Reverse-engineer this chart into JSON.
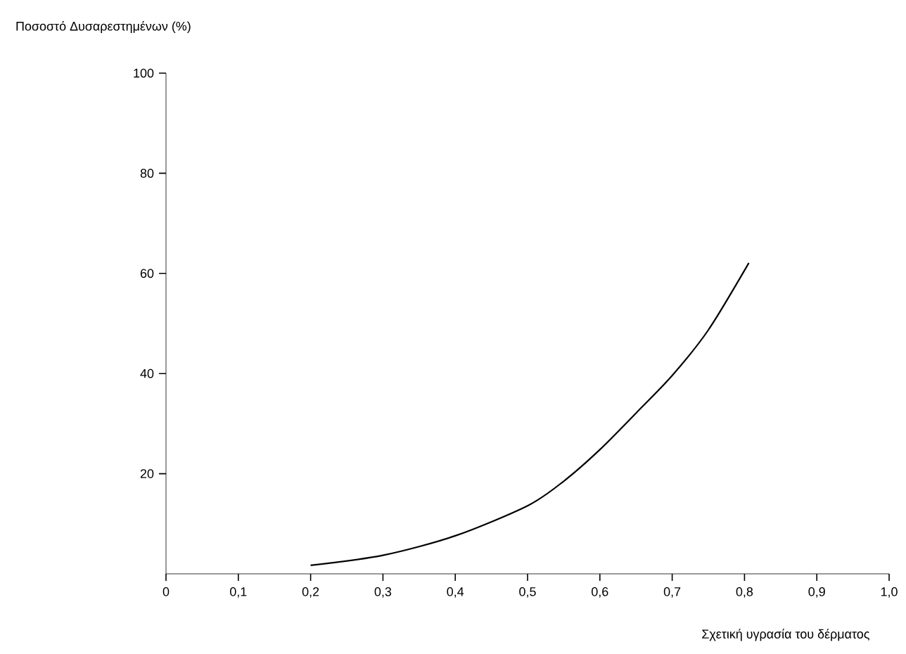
{
  "chart_data": {
    "type": "line",
    "xlabel": "Σχετική υγρασία του δέρματος",
    "ylabel": "Ποσοστό Δυσαρεστημένων (%)",
    "xlim": [
      0,
      1.0
    ],
    "ylim": [
      0,
      100
    ],
    "xticks": [
      {
        "value": 0,
        "label": "0"
      },
      {
        "value": 0.1,
        "label": "0,1"
      },
      {
        "value": 0.2,
        "label": "0,2"
      },
      {
        "value": 0.3,
        "label": "0,3"
      },
      {
        "value": 0.4,
        "label": "0,4"
      },
      {
        "value": 0.5,
        "label": "0,5"
      },
      {
        "value": 0.6,
        "label": "0,6"
      },
      {
        "value": 0.7,
        "label": "0,7"
      },
      {
        "value": 0.8,
        "label": "0,8"
      },
      {
        "value": 0.9,
        "label": "0,9"
      },
      {
        "value": 1.0,
        "label": "1,0"
      }
    ],
    "yticks": [
      20,
      40,
      60,
      80,
      100
    ],
    "series": [
      {
        "color": "#000000",
        "x": [
          0.2,
          0.3,
          0.4,
          0.5,
          0.55,
          0.6,
          0.65,
          0.7,
          0.75,
          0.806
        ],
        "values": [
          1.7,
          3.7,
          7.6,
          13.6,
          18.5,
          24.8,
          32.1,
          39.6,
          48.7,
          62.1
        ]
      }
    ]
  }
}
